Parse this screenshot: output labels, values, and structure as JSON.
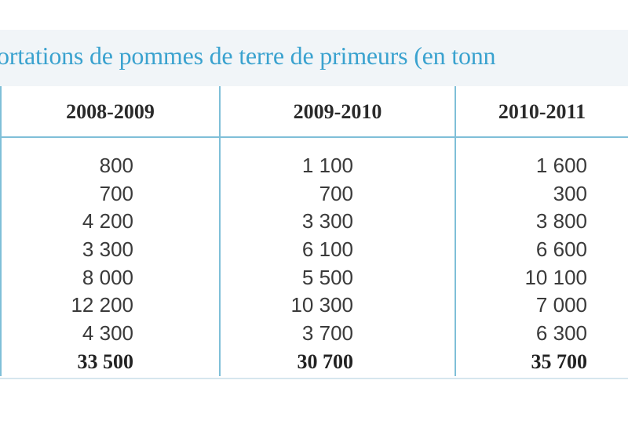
{
  "title": "ortations de pommes de terre de primeurs (en tonn",
  "columns": [
    {
      "header": "2008-2009",
      "values": [
        "800",
        "700",
        "4 200",
        "3 300",
        "8 000",
        "12 200",
        "4 300"
      ],
      "total": "33 500"
    },
    {
      "header": "2009-2010",
      "values": [
        "1 100",
        "700",
        "3 300",
        "6 100",
        "5 500",
        "10 300",
        "3 700"
      ],
      "total": "30 700"
    },
    {
      "header": "2010-2011",
      "values": [
        "1 600",
        "300",
        "3 800",
        "6 600",
        "10 100",
        "7 000",
        "6 300"
      ],
      "total": "35 700"
    }
  ],
  "colors": {
    "title": "#3aa2cf",
    "rule": "#7fbfd8",
    "band": "#f1f5f8",
    "text": "#3a3a3a"
  }
}
